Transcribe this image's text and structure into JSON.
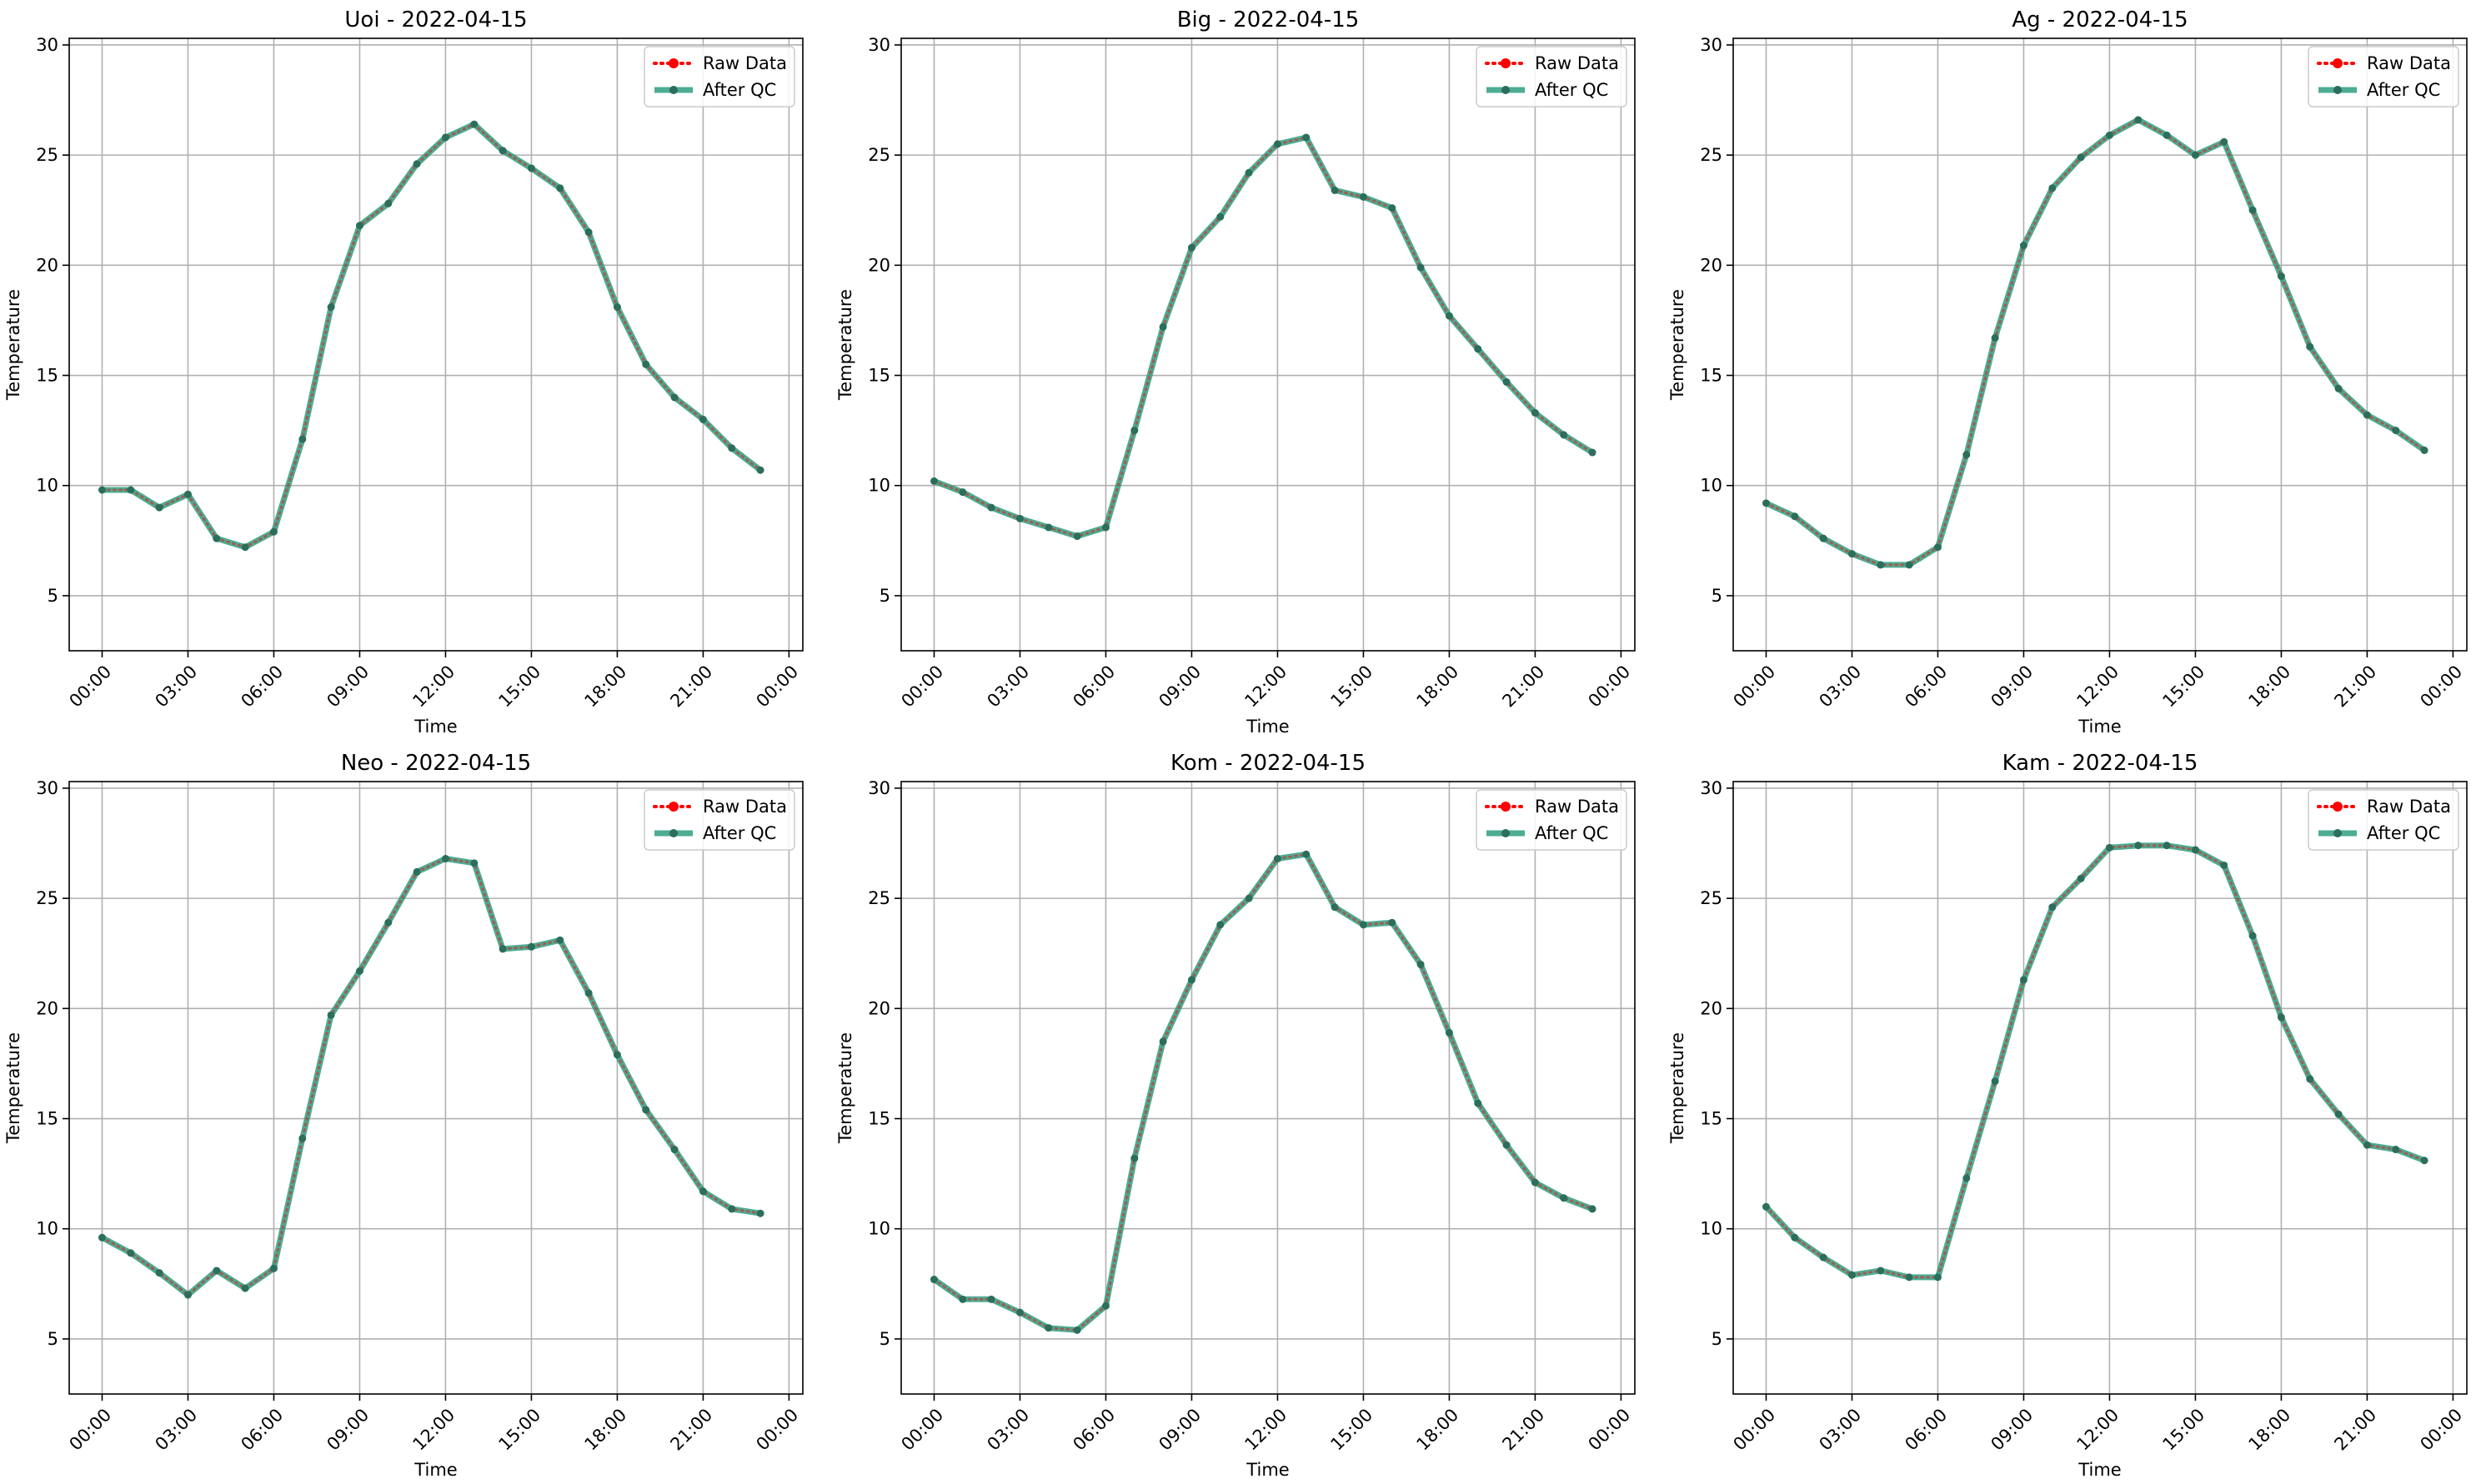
{
  "figure": {
    "x_tick_labels": [
      "00:00",
      "03:00",
      "06:00",
      "09:00",
      "12:00",
      "15:00",
      "18:00",
      "21:00",
      "00:00"
    ],
    "y_tick_labels": [
      "5",
      "10",
      "15",
      "20",
      "25",
      "30"
    ],
    "legend_labels": [
      "Raw Data",
      "After QC"
    ],
    "colors": {
      "raw": "#ff0000",
      "qc": "#2e9e80",
      "qc_marker": "#2c6e5c"
    }
  },
  "chart_data": [
    {
      "type": "line",
      "title": "Uoi - 2022-04-15",
      "xlabel": "Time",
      "ylabel": "Temperature",
      "xlim": [
        "2022-04-14 22:51",
        "2022-04-16 00:29"
      ],
      "ylim": [
        2.5,
        30.3
      ],
      "grid": true,
      "legend": "top-right",
      "x": [
        "00:00",
        "01:00",
        "02:00",
        "03:00",
        "04:00",
        "05:00",
        "06:00",
        "07:00",
        "08:00",
        "09:00",
        "10:00",
        "11:00",
        "12:00",
        "13:00",
        "14:00",
        "15:00",
        "16:00",
        "17:00",
        "18:00",
        "19:00",
        "20:00",
        "21:00",
        "22:00",
        "23:00"
      ],
      "series": [
        {
          "name": "Raw Data",
          "values": [
            9.8,
            9.8,
            9.0,
            9.6,
            7.6,
            7.2,
            7.9,
            12.1,
            18.1,
            21.8,
            22.8,
            24.6,
            25.8,
            26.4,
            25.2,
            24.4,
            23.5,
            21.5,
            18.1,
            15.5,
            14.0,
            13.0,
            11.7,
            10.7
          ]
        },
        {
          "name": "After QC",
          "values": [
            9.8,
            9.8,
            9.0,
            9.6,
            7.6,
            7.2,
            7.9,
            12.1,
            18.1,
            21.8,
            22.8,
            24.6,
            25.8,
            26.4,
            25.2,
            24.4,
            23.5,
            21.5,
            18.1,
            15.5,
            14.0,
            13.0,
            11.7,
            10.7
          ]
        }
      ]
    },
    {
      "type": "line",
      "title": "Big - 2022-04-15",
      "xlabel": "Time",
      "ylabel": "Temperature",
      "xlim": [
        "2022-04-14 22:51",
        "2022-04-16 00:29"
      ],
      "ylim": [
        2.5,
        30.3
      ],
      "grid": true,
      "legend": "top-right",
      "x": [
        "00:00",
        "01:00",
        "02:00",
        "03:00",
        "04:00",
        "05:00",
        "06:00",
        "07:00",
        "08:00",
        "09:00",
        "10:00",
        "11:00",
        "12:00",
        "13:00",
        "14:00",
        "15:00",
        "16:00",
        "17:00",
        "18:00",
        "19:00",
        "20:00",
        "21:00",
        "22:00",
        "23:00"
      ],
      "series": [
        {
          "name": "Raw Data",
          "values": [
            10.2,
            9.7,
            9.0,
            8.5,
            8.1,
            7.7,
            8.1,
            12.5,
            17.2,
            20.8,
            22.2,
            24.2,
            25.5,
            25.8,
            23.4,
            23.1,
            22.6,
            19.9,
            17.7,
            16.2,
            14.7,
            13.3,
            12.3,
            11.5
          ]
        },
        {
          "name": "After QC",
          "values": [
            10.2,
            9.7,
            9.0,
            8.5,
            8.1,
            7.7,
            8.1,
            12.5,
            17.2,
            20.8,
            22.2,
            24.2,
            25.5,
            25.8,
            23.4,
            23.1,
            22.6,
            19.9,
            17.7,
            16.2,
            14.7,
            13.3,
            12.3,
            11.5
          ]
        }
      ]
    },
    {
      "type": "line",
      "title": "Ag - 2022-04-15",
      "xlabel": "Time",
      "ylabel": "Temperature",
      "xlim": [
        "2022-04-14 22:51",
        "2022-04-16 00:29"
      ],
      "ylim": [
        2.5,
        30.3
      ],
      "grid": true,
      "legend": "top-right",
      "x": [
        "00:00",
        "01:00",
        "02:00",
        "03:00",
        "04:00",
        "05:00",
        "06:00",
        "07:00",
        "08:00",
        "09:00",
        "10:00",
        "11:00",
        "12:00",
        "13:00",
        "14:00",
        "15:00",
        "16:00",
        "17:00",
        "18:00",
        "19:00",
        "20:00",
        "21:00",
        "22:00",
        "23:00"
      ],
      "series": [
        {
          "name": "Raw Data",
          "values": [
            9.2,
            8.6,
            7.6,
            6.9,
            6.4,
            6.4,
            7.2,
            11.4,
            16.7,
            20.9,
            23.5,
            24.9,
            25.9,
            26.6,
            25.9,
            25.0,
            25.6,
            22.5,
            19.5,
            16.3,
            14.4,
            13.2,
            12.5,
            11.6
          ]
        },
        {
          "name": "After QC",
          "values": [
            9.2,
            8.6,
            7.6,
            6.9,
            6.4,
            6.4,
            7.2,
            11.4,
            16.7,
            20.9,
            23.5,
            24.9,
            25.9,
            26.6,
            25.9,
            25.0,
            25.6,
            22.5,
            19.5,
            16.3,
            14.4,
            13.2,
            12.5,
            11.6
          ]
        }
      ]
    },
    {
      "type": "line",
      "title": "Neo - 2022-04-15",
      "xlabel": "Time",
      "ylabel": "Temperature",
      "xlim": [
        "2022-04-14 22:51",
        "2022-04-16 00:29"
      ],
      "ylim": [
        2.5,
        30.3
      ],
      "grid": true,
      "legend": "top-right",
      "x": [
        "00:00",
        "01:00",
        "02:00",
        "03:00",
        "04:00",
        "05:00",
        "06:00",
        "07:00",
        "08:00",
        "09:00",
        "10:00",
        "11:00",
        "12:00",
        "13:00",
        "14:00",
        "15:00",
        "16:00",
        "17:00",
        "18:00",
        "19:00",
        "20:00",
        "21:00",
        "22:00",
        "23:00"
      ],
      "series": [
        {
          "name": "Raw Data",
          "values": [
            9.6,
            8.9,
            8.0,
            7.0,
            8.1,
            7.3,
            8.2,
            14.1,
            19.7,
            21.7,
            23.9,
            26.2,
            26.8,
            26.6,
            22.7,
            22.8,
            23.1,
            20.7,
            17.9,
            15.4,
            13.6,
            11.7,
            10.9,
            10.7
          ]
        },
        {
          "name": "After QC",
          "values": [
            9.6,
            8.9,
            8.0,
            7.0,
            8.1,
            7.3,
            8.2,
            14.1,
            19.7,
            21.7,
            23.9,
            26.2,
            26.8,
            26.6,
            22.7,
            22.8,
            23.1,
            20.7,
            17.9,
            15.4,
            13.6,
            11.7,
            10.9,
            10.7
          ]
        }
      ]
    },
    {
      "type": "line",
      "title": "Kom - 2022-04-15",
      "xlabel": "Time",
      "ylabel": "Temperature",
      "xlim": [
        "2022-04-14 22:51",
        "2022-04-16 00:29"
      ],
      "ylim": [
        2.5,
        30.3
      ],
      "grid": true,
      "legend": "top-right",
      "x": [
        "00:00",
        "01:00",
        "02:00",
        "03:00",
        "04:00",
        "05:00",
        "06:00",
        "07:00",
        "08:00",
        "09:00",
        "10:00",
        "11:00",
        "12:00",
        "13:00",
        "14:00",
        "15:00",
        "16:00",
        "17:00",
        "18:00",
        "19:00",
        "20:00",
        "21:00",
        "22:00",
        "23:00"
      ],
      "series": [
        {
          "name": "Raw Data",
          "values": [
            7.7,
            6.8,
            6.8,
            6.2,
            5.5,
            5.4,
            6.5,
            13.2,
            18.5,
            21.3,
            23.8,
            25.0,
            26.8,
            27.0,
            24.6,
            23.8,
            23.9,
            22.0,
            18.9,
            15.7,
            13.8,
            12.1,
            11.4,
            10.9
          ]
        },
        {
          "name": "After QC",
          "values": [
            7.7,
            6.8,
            6.8,
            6.2,
            5.5,
            5.4,
            6.5,
            13.2,
            18.5,
            21.3,
            23.8,
            25.0,
            26.8,
            27.0,
            24.6,
            23.8,
            23.9,
            22.0,
            18.9,
            15.7,
            13.8,
            12.1,
            11.4,
            10.9
          ]
        }
      ]
    },
    {
      "type": "line",
      "title": "Kam - 2022-04-15",
      "xlabel": "Time",
      "ylabel": "Temperature",
      "xlim": [
        "2022-04-14 22:51",
        "2022-04-16 00:29"
      ],
      "ylim": [
        2.5,
        30.3
      ],
      "grid": true,
      "legend": "top-right",
      "x": [
        "00:00",
        "01:00",
        "02:00",
        "03:00",
        "04:00",
        "05:00",
        "06:00",
        "07:00",
        "08:00",
        "09:00",
        "10:00",
        "11:00",
        "12:00",
        "13:00",
        "14:00",
        "15:00",
        "16:00",
        "17:00",
        "18:00",
        "19:00",
        "20:00",
        "21:00",
        "22:00",
        "23:00"
      ],
      "series": [
        {
          "name": "Raw Data",
          "values": [
            11.0,
            9.6,
            8.7,
            7.9,
            8.1,
            7.8,
            7.8,
            12.3,
            16.7,
            21.3,
            24.6,
            25.9,
            27.3,
            27.4,
            27.4,
            27.2,
            26.5,
            23.3,
            19.6,
            16.8,
            15.2,
            13.8,
            13.6,
            13.1
          ]
        },
        {
          "name": "After QC",
          "values": [
            11.0,
            9.6,
            8.7,
            7.9,
            8.1,
            7.8,
            7.8,
            12.3,
            16.7,
            21.3,
            24.6,
            25.9,
            27.3,
            27.4,
            27.4,
            27.2,
            26.5,
            23.3,
            19.6,
            16.8,
            15.2,
            13.8,
            13.6,
            13.1
          ]
        }
      ]
    }
  ]
}
